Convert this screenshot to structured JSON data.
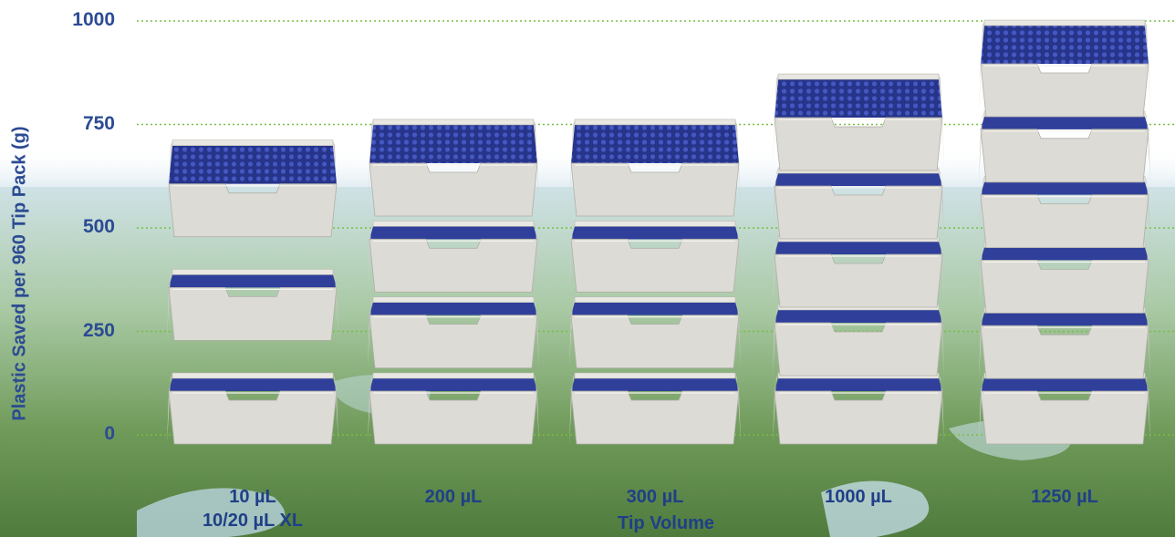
{
  "chart_data": {
    "type": "bar",
    "ylabel": "Plastic Saved per 960 Tip Pack (g)",
    "xlabel": "Tip Volume",
    "ylim": [
      0,
      1000
    ],
    "yticks": [
      "0",
      "250",
      "500",
      "750",
      "1000"
    ],
    "grid": true,
    "categories": [
      "10 µL",
      "200 µL",
      "300 µL",
      "1000 µL",
      "1250 µL"
    ],
    "sublabels": [
      "10/20 µL XL",
      "",
      "",
      "",
      ""
    ],
    "values": [
      580,
      630,
      630,
      740,
      870
    ],
    "rack_counts": [
      3,
      4,
      4,
      5,
      6
    ],
    "colors": {
      "axis_text": "#2b4b93",
      "grid": "#77c043",
      "tray": "#dcdbd5",
      "tips": "#2f3f9a"
    }
  }
}
